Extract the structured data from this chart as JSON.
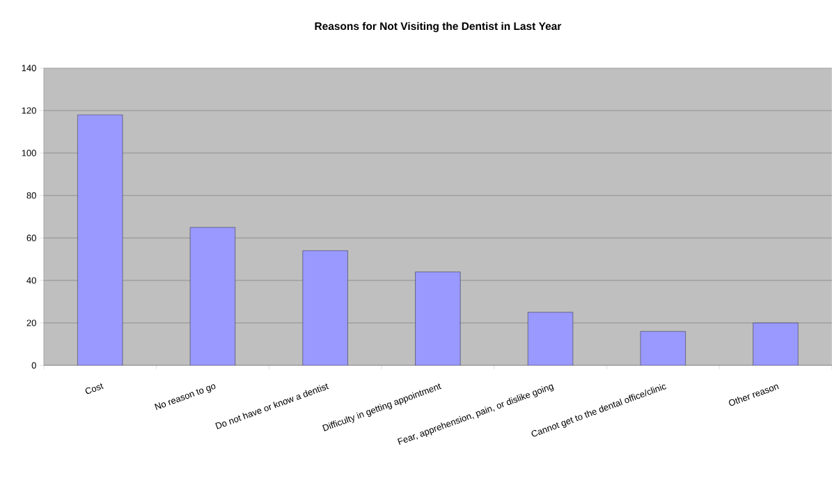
{
  "chart_data": {
    "type": "bar",
    "title": "Reasons for Not Visiting the Dentist in Last Year",
    "categories": [
      "Cost",
      "No reason to go",
      "Do not have or know a dentist",
      "Difficulty in getting appointment",
      "Fear, apprehension, pain, or dislike going",
      "Cannot get to the dental office/clinic",
      "Other reason"
    ],
    "values": [
      118,
      65,
      54,
      44,
      25,
      16,
      20
    ],
    "color": "#9999ff",
    "ylim": [
      0,
      140
    ],
    "yticks": [
      0,
      20,
      40,
      60,
      80,
      100,
      120,
      140
    ],
    "grid": "y"
  }
}
